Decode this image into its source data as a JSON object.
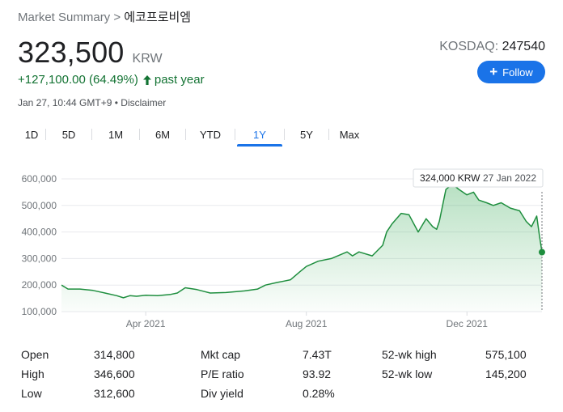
{
  "breadcrumb": {
    "root": "Market Summary",
    "separator": " > ",
    "current": "에코프로비엠"
  },
  "quote": {
    "price": "323,500",
    "currency": "KRW",
    "change_text": "+127,100.00 (64.49%)",
    "change_period": "past year",
    "timestamp": "Jan 27, 10:44 GMT+9",
    "separator": " • ",
    "disclaimer": "Disclaimer",
    "exchange": "KOSDAQ:",
    "ticker": "247540",
    "follow_label": "Follow",
    "positive_color": "#137333",
    "accent_color": "#1a73e8"
  },
  "range_tabs": [
    {
      "label": "1D",
      "active": false
    },
    {
      "label": "5D",
      "active": false
    },
    {
      "label": "1M",
      "active": false
    },
    {
      "label": "6M",
      "active": false
    },
    {
      "label": "YTD",
      "active": false
    },
    {
      "label": "1Y",
      "active": true
    },
    {
      "label": "5Y",
      "active": false
    },
    {
      "label": "Max",
      "active": false
    }
  ],
  "tooltip": {
    "value": "324,000 KRW",
    "date": "27 Jan 2022"
  },
  "chart_data": {
    "type": "area",
    "color": "#1e8e3e",
    "y_tick_labels": [
      "600,000",
      "500,000",
      "400,000",
      "300,000",
      "200,000",
      "100,000"
    ],
    "y_ticks": [
      600000,
      500000,
      400000,
      300000,
      200000,
      100000
    ],
    "ylim": [
      100000,
      600000
    ],
    "x_tick_labels": [
      "Apr 2021",
      "Aug 2021",
      "Dec 2021"
    ],
    "x_ticks": [
      "2021-04-01",
      "2021-08-01",
      "2021-12-01"
    ],
    "xlim": [
      "2021-01-27",
      "2022-01-27"
    ],
    "grid": true,
    "series": [
      {
        "x": [
          "2021-01-27",
          "2021-02-01",
          "2021-02-10",
          "2021-02-20",
          "2021-03-01",
          "2021-03-10",
          "2021-03-15",
          "2021-03-20",
          "2021-03-25",
          "2021-04-01",
          "2021-04-10",
          "2021-04-20",
          "2021-04-25",
          "2021-05-01",
          "2021-05-10",
          "2021-05-20",
          "2021-06-01",
          "2021-06-15",
          "2021-06-25",
          "2021-07-01",
          "2021-07-10",
          "2021-07-15",
          "2021-07-20",
          "2021-07-27",
          "2021-08-01",
          "2021-08-10",
          "2021-08-20",
          "2021-09-01",
          "2021-09-05",
          "2021-09-10",
          "2021-09-20",
          "2021-09-28",
          "2021-10-01",
          "2021-10-05",
          "2021-10-12",
          "2021-10-18",
          "2021-10-25",
          "2021-10-31",
          "2021-11-05",
          "2021-11-08",
          "2021-11-10",
          "2021-11-15",
          "2021-11-20",
          "2021-11-25",
          "2021-12-01",
          "2021-12-06",
          "2021-12-10",
          "2021-12-16",
          "2021-12-21",
          "2021-12-27",
          "2022-01-03",
          "2022-01-10",
          "2022-01-15",
          "2022-01-19",
          "2022-01-23",
          "2022-01-25",
          "2022-01-27"
        ],
        "values": [
          200000,
          185000,
          185000,
          180000,
          170000,
          160000,
          152000,
          160000,
          158000,
          162000,
          160000,
          165000,
          170000,
          190000,
          183000,
          170000,
          172000,
          178000,
          185000,
          200000,
          210000,
          215000,
          220000,
          250000,
          270000,
          290000,
          300000,
          325000,
          310000,
          325000,
          310000,
          350000,
          400000,
          430000,
          470000,
          465000,
          400000,
          450000,
          420000,
          410000,
          440000,
          560000,
          580000,
          560000,
          540000,
          550000,
          520000,
          510000,
          500000,
          510000,
          490000,
          480000,
          440000,
          420000,
          460000,
          390000,
          324000
        ]
      }
    ]
  },
  "stats": {
    "col1": [
      {
        "label": "Open",
        "value": "314,800"
      },
      {
        "label": "High",
        "value": "346,600"
      },
      {
        "label": "Low",
        "value": "312,600"
      }
    ],
    "col2": [
      {
        "label": "Mkt cap",
        "value": "7.43T"
      },
      {
        "label": "P/E ratio",
        "value": "93.92"
      },
      {
        "label": "Div yield",
        "value": "0.28%"
      }
    ],
    "col3": [
      {
        "label": "52-wk high",
        "value": "575,100"
      },
      {
        "label": "52-wk low",
        "value": "145,200"
      }
    ]
  }
}
